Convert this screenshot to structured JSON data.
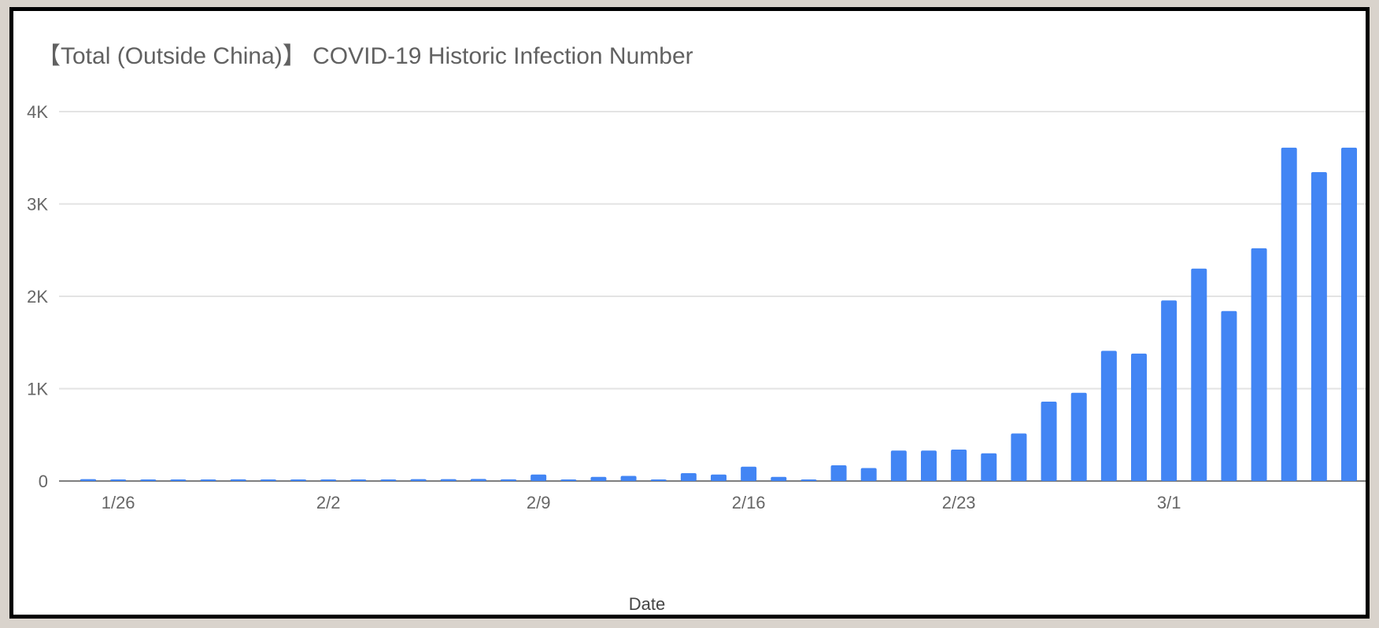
{
  "chart_data": {
    "type": "bar",
    "title": "【Total (Outside China)】 COVID-19 Historic Infection Number",
    "xlabel": "Date",
    "ylabel": "",
    "ylim": [
      0,
      4000
    ],
    "y_ticks": [
      0,
      1000,
      2000,
      3000,
      4000
    ],
    "y_tick_labels": [
      "0",
      "1K",
      "2K",
      "3K",
      "4K"
    ],
    "x_tick_labels": [
      "1/26",
      "2/2",
      "2/9",
      "2/16",
      "2/23",
      "3/1"
    ],
    "grid": true,
    "legend": "none",
    "bar_color": "#4285f4",
    "categories": [
      "1/25",
      "1/26",
      "1/27",
      "1/28",
      "1/29",
      "1/30",
      "1/31",
      "2/1",
      "2/2",
      "2/3",
      "2/4",
      "2/5",
      "2/6",
      "2/7",
      "2/8",
      "2/9",
      "2/10",
      "2/11",
      "2/12",
      "2/13",
      "2/14",
      "2/15",
      "2/16",
      "2/17",
      "2/18",
      "2/19",
      "2/20",
      "2/21",
      "2/22",
      "2/23",
      "2/24",
      "2/25",
      "2/26",
      "2/27",
      "2/28",
      "2/29",
      "3/1",
      "3/2",
      "3/3",
      "3/4",
      "3/5",
      "3/6",
      "3/7"
    ],
    "values": [
      20,
      5,
      10,
      15,
      10,
      18,
      10,
      8,
      5,
      12,
      15,
      20,
      20,
      22,
      18,
      70,
      5,
      45,
      55,
      12,
      85,
      70,
      155,
      45,
      15,
      170,
      140,
      330,
      330,
      340,
      300,
      515,
      860,
      955,
      1410,
      1380,
      1955,
      2300,
      1840,
      2520,
      3610,
      3345,
      3610
    ]
  }
}
